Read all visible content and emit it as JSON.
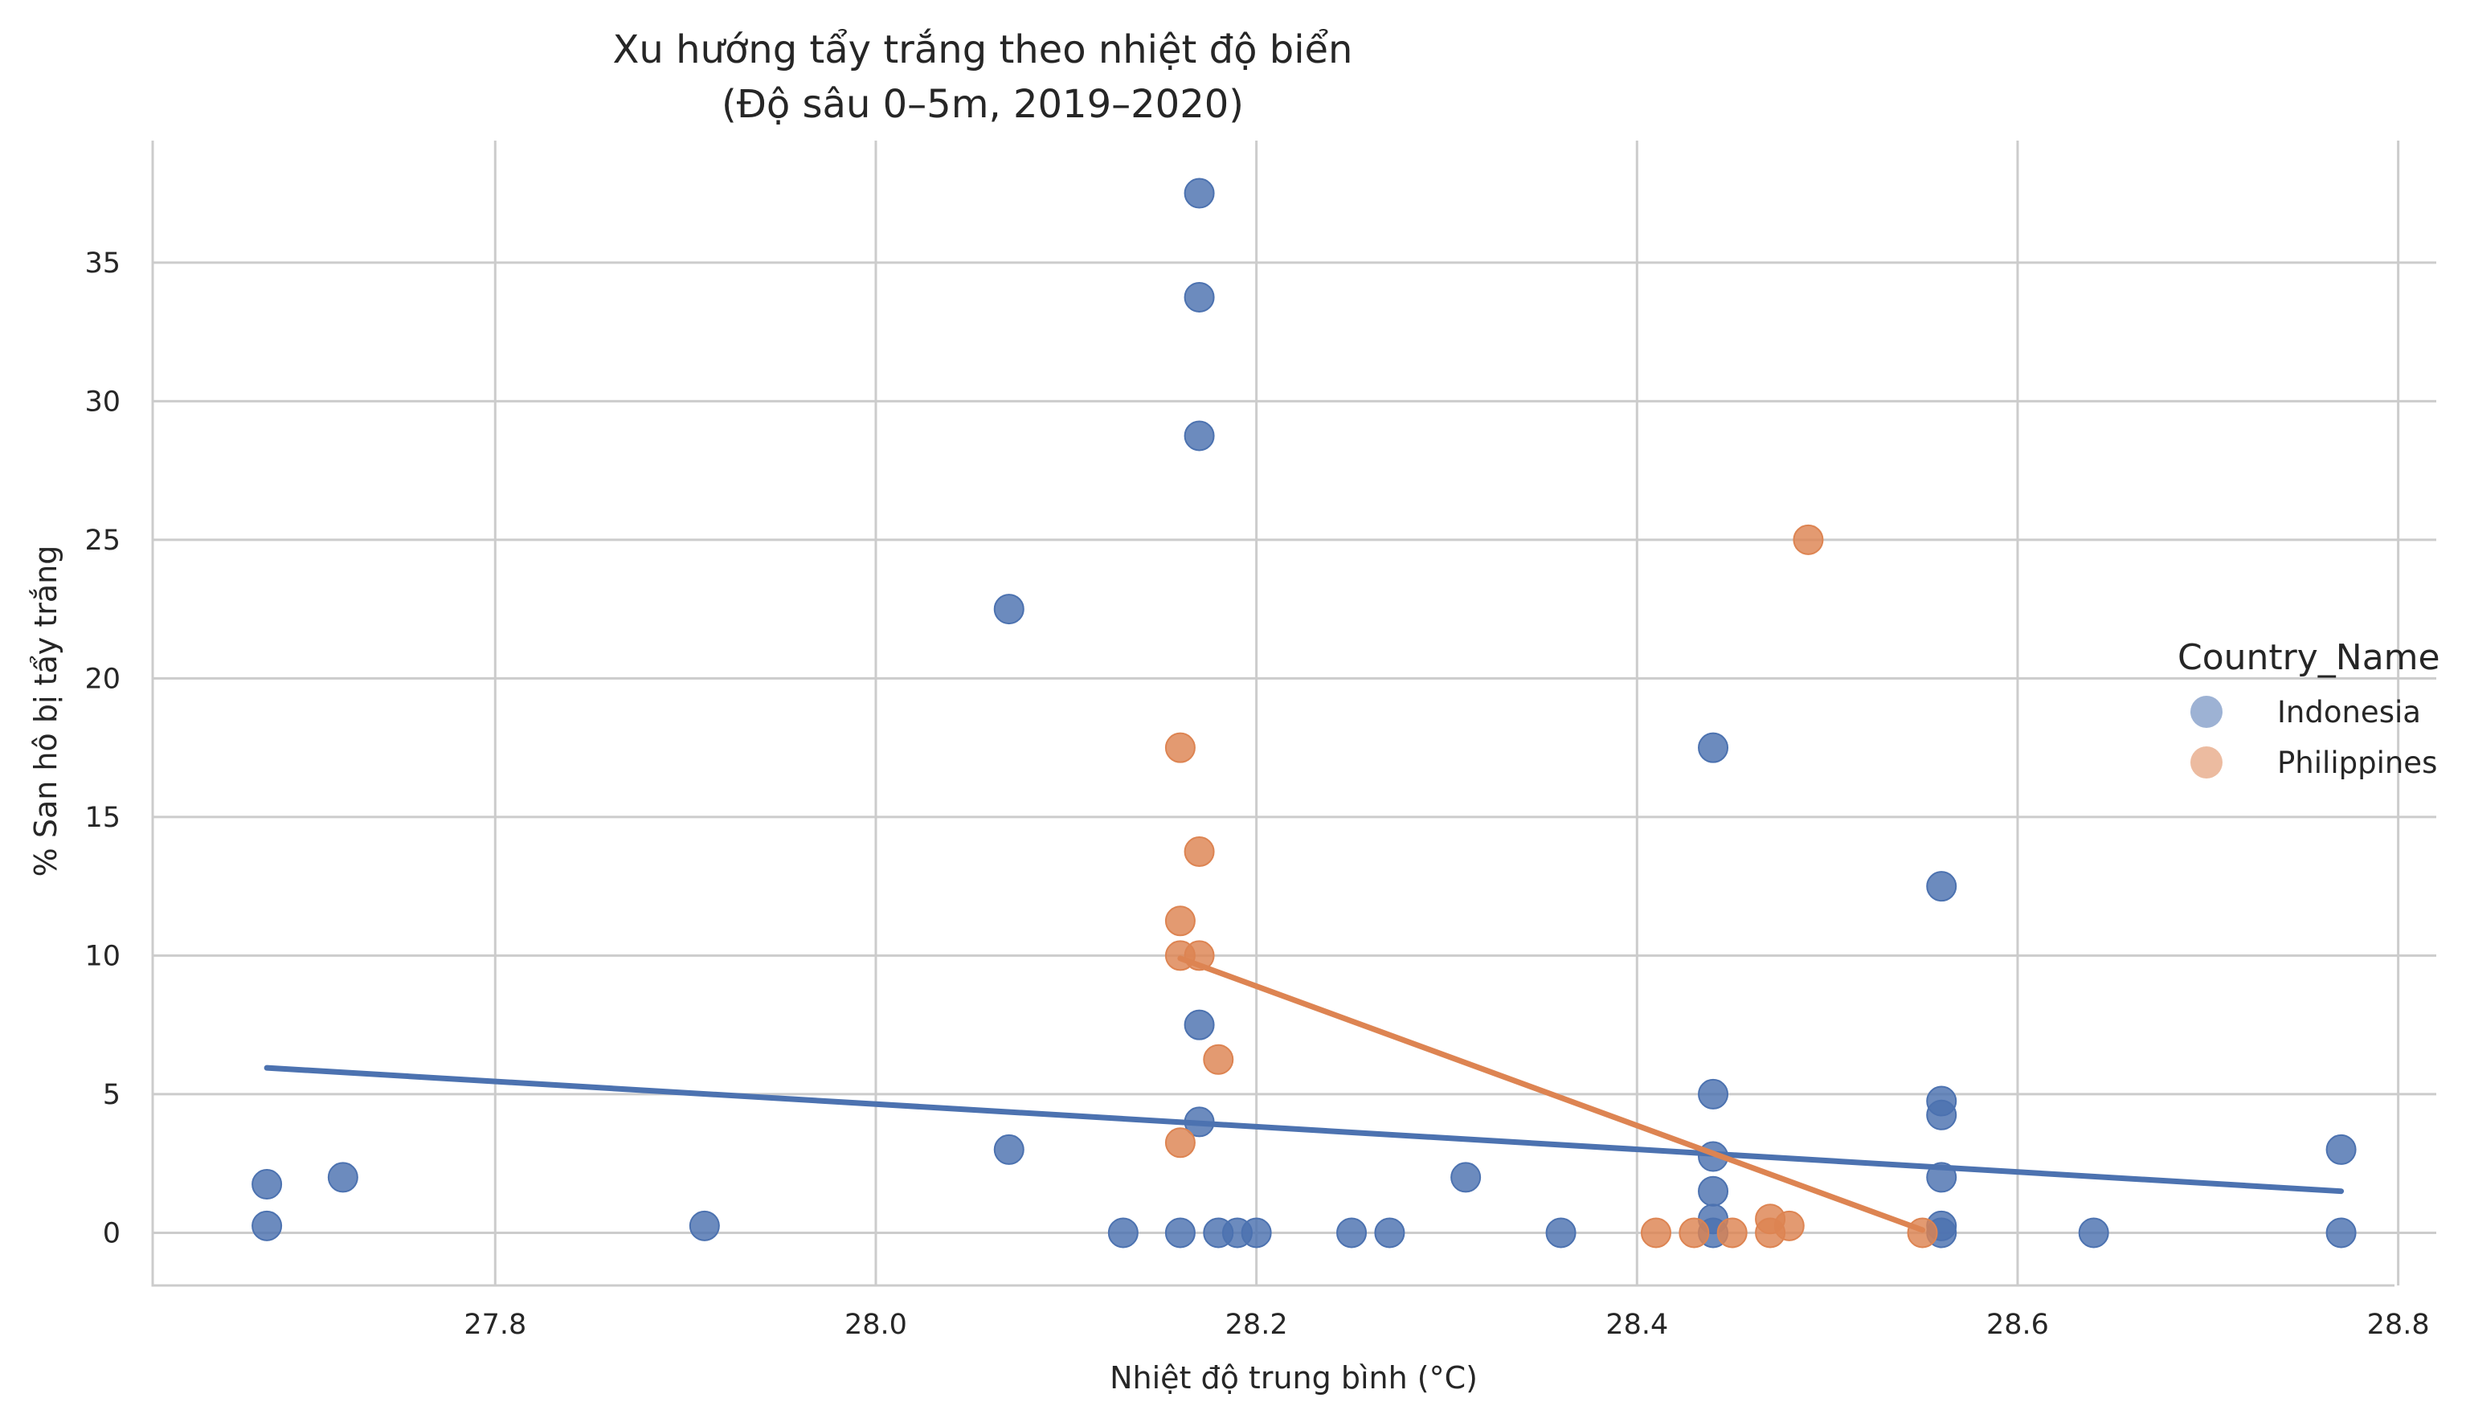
{
  "chart_data": {
    "type": "scatter",
    "title": "Xu hướng tẩy trắng theo nhiệt độ biển",
    "subtitle": "(Độ sâu 0–5m, 2019–2020)",
    "xlabel": "Nhiệt độ trung bình (°C)",
    "ylabel": "% San hô bị tẩy trắng",
    "xlim": [
      27.62,
      28.82
    ],
    "ylim": [
      -1.9,
      39.4
    ],
    "xticks": [
      27.8,
      28.0,
      28.2,
      28.4,
      28.6,
      28.8
    ],
    "xtick_labels": [
      "27.8",
      "28.0",
      "28.2",
      "28.4",
      "28.6",
      "28.8"
    ],
    "yticks": [
      0,
      5,
      10,
      15,
      20,
      25,
      30,
      35
    ],
    "ytick_labels": [
      "0",
      "5",
      "10",
      "15",
      "20",
      "25",
      "30",
      "35"
    ],
    "grid": true,
    "legend": {
      "title": "Country_Name",
      "placement": "right",
      "entries": [
        "Indonesia",
        "Philippines"
      ]
    },
    "series": [
      {
        "name": "Indonesia",
        "color": "#4c72b0",
        "points": [
          [
            28.17,
            37.5
          ],
          [
            28.17,
            33.75
          ],
          [
            28.17,
            28.75
          ],
          [
            28.07,
            22.5
          ],
          [
            28.44,
            17.5
          ],
          [
            28.56,
            12.5
          ],
          [
            28.17,
            7.5
          ],
          [
            28.44,
            5.0
          ],
          [
            28.56,
            4.75
          ],
          [
            28.56,
            4.25
          ],
          [
            28.17,
            4.0
          ],
          [
            28.07,
            3.0
          ],
          [
            28.77,
            3.0
          ],
          [
            28.44,
            2.75
          ],
          [
            27.72,
            2.0
          ],
          [
            28.31,
            2.0
          ],
          [
            28.56,
            2.0
          ],
          [
            27.68,
            1.75
          ],
          [
            28.44,
            1.5
          ],
          [
            28.44,
            0.5
          ],
          [
            28.56,
            0.25
          ],
          [
            27.68,
            0.25
          ],
          [
            27.91,
            0.25
          ],
          [
            28.13,
            0.0
          ],
          [
            28.16,
            0.0
          ],
          [
            28.18,
            0.0
          ],
          [
            28.19,
            0.0
          ],
          [
            28.2,
            0.0
          ],
          [
            28.25,
            0.0
          ],
          [
            28.27,
            0.0
          ],
          [
            28.36,
            0.0
          ],
          [
            28.44,
            0.0
          ],
          [
            28.56,
            0.0
          ],
          [
            28.64,
            0.0
          ],
          [
            28.77,
            0.0
          ]
        ],
        "trend_line": [
          [
            27.68,
            5.95
          ],
          [
            28.77,
            1.5
          ]
        ]
      },
      {
        "name": "Philippines",
        "color": "#dd8452",
        "points": [
          [
            28.49,
            25.0
          ],
          [
            28.16,
            17.5
          ],
          [
            28.17,
            13.75
          ],
          [
            28.16,
            11.25
          ],
          [
            28.16,
            10.0
          ],
          [
            28.17,
            10.0
          ],
          [
            28.18,
            6.25
          ],
          [
            28.16,
            3.25
          ],
          [
            28.47,
            0.5
          ],
          [
            28.48,
            0.25
          ],
          [
            28.41,
            0.0
          ],
          [
            28.43,
            0.0
          ],
          [
            28.45,
            0.0
          ],
          [
            28.47,
            0.0
          ],
          [
            28.55,
            0.0
          ]
        ],
        "trend_line": [
          [
            28.16,
            9.9
          ],
          [
            28.55,
            0.1
          ]
        ]
      }
    ]
  }
}
